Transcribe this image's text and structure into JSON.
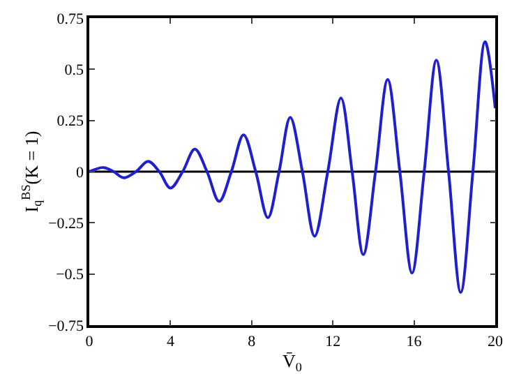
{
  "chart_data": {
    "type": "line",
    "xlabel": "V̄$_{0}$",
    "ylabel": "I$_{q}$$^{BS}$(K = 1)",
    "x": [
      0,
      0.7,
      1.2,
      1.7,
      2.3,
      2.9,
      3.45,
      4.0,
      4.6,
      5.2,
      5.8,
      6.4,
      7.0,
      7.6,
      8.2,
      8.8,
      9.35,
      9.9,
      10.5,
      11.1,
      11.75,
      12.4,
      12.95,
      13.5,
      14.1,
      14.7,
      15.3,
      15.9,
      16.5,
      17.1,
      17.7,
      18.3,
      18.9,
      19.5,
      20
    ],
    "series": [
      {
        "color": "#1f1fd0",
        "values": [
          0,
          0.02,
          0,
          -0.03,
          0,
          0.05,
          0,
          -0.08,
          0,
          0.11,
          0,
          -0.145,
          0,
          0.18,
          0,
          -0.225,
          0,
          0.265,
          0,
          -0.315,
          0,
          0.36,
          0,
          -0.405,
          0,
          0.45,
          0,
          -0.495,
          0,
          0.545,
          0,
          -0.59,
          0,
          0.635,
          0.31
        ]
      }
    ],
    "xlim": [
      0,
      20
    ],
    "xticks": [
      0,
      4,
      8,
      12,
      16,
      20
    ],
    "ylim": [
      -0.75,
      0.75
    ],
    "yticks": [
      {
        "value": -0.75,
        "label": "−0.75"
      },
      {
        "value": -0.5,
        "label": "−0.5"
      },
      {
        "value": -0.25,
        "label": "−0.25"
      },
      0,
      0.25,
      0.5,
      0.75
    ],
    "ref_lines": [
      {
        "axis": "y",
        "value": 0,
        "color": "#000000"
      }
    ],
    "grid": false,
    "marker": "none",
    "line_style": "solid"
  }
}
